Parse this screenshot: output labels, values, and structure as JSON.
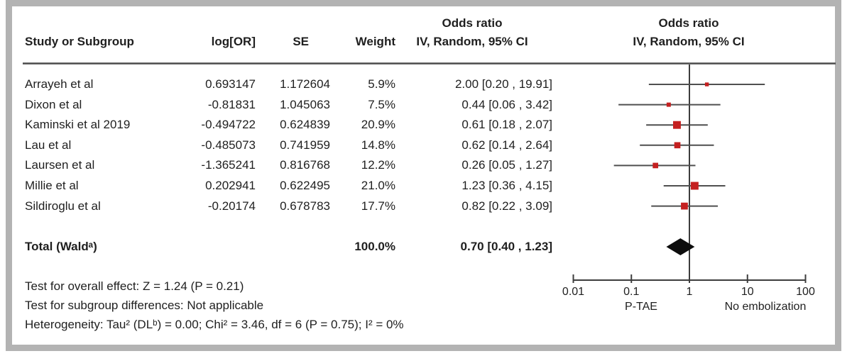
{
  "chart_data": {
    "type": "forest",
    "header": {
      "study": "Study or Subgroup",
      "log_or": "log[OR]",
      "se": "SE",
      "weight": "Weight",
      "or_title": "Odds ratio",
      "or_sub": "IV, Random, 95% CI",
      "plot_title": "Odds ratio",
      "plot_sub": "IV, Random, 95% CI"
    },
    "studies": [
      {
        "name": "Arrayeh et al",
        "log_or": "0.693147",
        "se": "1.172604",
        "weight": "5.9%",
        "weight_val": 5.9,
        "ci_text": "2.00 [0.20 , 19.91]",
        "or": 2.0,
        "lo": 0.2,
        "hi": 19.91
      },
      {
        "name": "Dixon et al",
        "log_or": "-0.81831",
        "se": "1.045063",
        "weight": "7.5%",
        "weight_val": 7.5,
        "ci_text": "0.44 [0.06 , 3.42]",
        "or": 0.44,
        "lo": 0.06,
        "hi": 3.42
      },
      {
        "name": "Kaminski et al 2019",
        "log_or": "-0.494722",
        "se": "0.624839",
        "weight": "20.9%",
        "weight_val": 20.9,
        "ci_text": "0.61 [0.18 , 2.07]",
        "or": 0.61,
        "lo": 0.18,
        "hi": 2.07
      },
      {
        "name": "Lau et al",
        "log_or": "-0.485073",
        "se": "0.741959",
        "weight": "14.8%",
        "weight_val": 14.8,
        "ci_text": "0.62 [0.14 , 2.64]",
        "or": 0.62,
        "lo": 0.14,
        "hi": 2.64
      },
      {
        "name": "Laursen et al",
        "log_or": "-1.365241",
        "se": "0.816768",
        "weight": "12.2%",
        "weight_val": 12.2,
        "ci_text": "0.26 [0.05 , 1.27]",
        "or": 0.26,
        "lo": 0.05,
        "hi": 1.27
      },
      {
        "name": "Millie et al",
        "log_or": "0.202941",
        "se": "0.622495",
        "weight": "21.0%",
        "weight_val": 21.0,
        "ci_text": "1.23 [0.36 , 4.15]",
        "or": 1.23,
        "lo": 0.36,
        "hi": 4.15
      },
      {
        "name": "Sildiroglu et al",
        "log_or": "-0.20174",
        "se": "0.678783",
        "weight": "17.7%",
        "weight_val": 17.7,
        "ci_text": "0.82 [0.22 , 3.09]",
        "or": 0.82,
        "lo": 0.22,
        "hi": 3.09
      }
    ],
    "total": {
      "label": "Total (Waldᵃ)",
      "weight": "100.0%",
      "ci_text": "0.70 [0.40 , 1.23]",
      "or": 0.7,
      "lo": 0.4,
      "hi": 1.23
    },
    "axis": {
      "ticks": [
        0.01,
        0.1,
        1,
        10,
        100
      ],
      "tick_labels": [
        "0.01",
        "0.1",
        "1",
        "10",
        "100"
      ],
      "left_group_label": "P-TAE",
      "right_group_label": "No embolization",
      "scale": "log",
      "range": [
        0.01,
        100
      ]
    },
    "footnotes": [
      "Test for overall effect: Z = 1.24 (P = 0.21)",
      "Test for subgroup differences: Not applicable",
      "Heterogeneity: Tau² (DLᵇ) = 0.00; Chi² = 3.46, df = 6 (P = 0.75); I² = 0%"
    ],
    "colors": {
      "marker": "#c41f1f",
      "ci_line": "#4f4f4f",
      "diamond": "#0d0d0d",
      "axis": "#3d3d3d",
      "text": "#1f1f1f",
      "frame_border": "#b3b3b3"
    }
  }
}
